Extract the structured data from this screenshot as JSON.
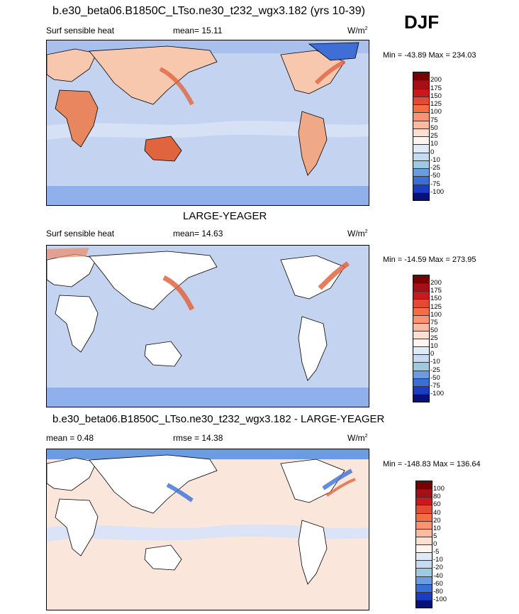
{
  "header": {
    "title": "b.e30_beta06.B1850C_LTso.ne30_t232_wgx3.182 (yrs 10-39)",
    "season": "DJF"
  },
  "panels": [
    {
      "id": "model",
      "title": "",
      "variable": "Surf sensible heat",
      "mean_label": "mean=  15.11",
      "units": "W/m",
      "units_sup": "2",
      "minmax": "Min = -43.89 Max = 234.03",
      "colorbar_labels": [
        "200",
        "175",
        "150",
        "125",
        "100",
        "75",
        "50",
        "25",
        "10",
        "0",
        "-10",
        "-25",
        "-50",
        "-75",
        "-100"
      ],
      "land": "colored"
    },
    {
      "id": "obs",
      "title": "LARGE-YEAGER",
      "variable": "Surf sensible heat",
      "mean_label": "mean=  14.63",
      "units": "W/m",
      "units_sup": "2",
      "minmax": "Min = -14.59 Max = 273.95",
      "colorbar_labels": [
        "200",
        "175",
        "150",
        "125",
        "100",
        "75",
        "50",
        "25",
        "10",
        "0",
        "-10",
        "-25",
        "-50",
        "-75",
        "-100"
      ],
      "land": "blank"
    },
    {
      "id": "diff",
      "title": "b.e30_beta06.B1850C_LTso.ne30_t232_wgx3.182 - LARGE-YEAGER",
      "mean_label": "mean =   0.48",
      "rmse_label": "rmse =  14.38",
      "units": "W/m",
      "units_sup": "2",
      "minmax": "Min = -148.83 Max = 136.64",
      "colorbar_labels": [
        "100",
        "80",
        "60",
        "40",
        "20",
        "10",
        "5",
        "0",
        "-5",
        "-10",
        "-20",
        "-40",
        "-60",
        "-80",
        "-100"
      ],
      "land": "blank"
    }
  ],
  "colors": {
    "colorbar": [
      "#7a0000",
      "#a50f15",
      "#cb181d",
      "#e34a33",
      "#f46d43",
      "#fc9272",
      "#fcbba1",
      "#fee0d2",
      "#fff5f0",
      "#deebf7",
      "#c6dbef",
      "#9ecae1",
      "#6b9be0",
      "#3b6fd8",
      "#1a3ec2",
      "#08107a"
    ],
    "ocean_base": "#c9d6f2",
    "ocean_diff": "#fbe6dc",
    "land_warm": "#f2a07a"
  }
}
